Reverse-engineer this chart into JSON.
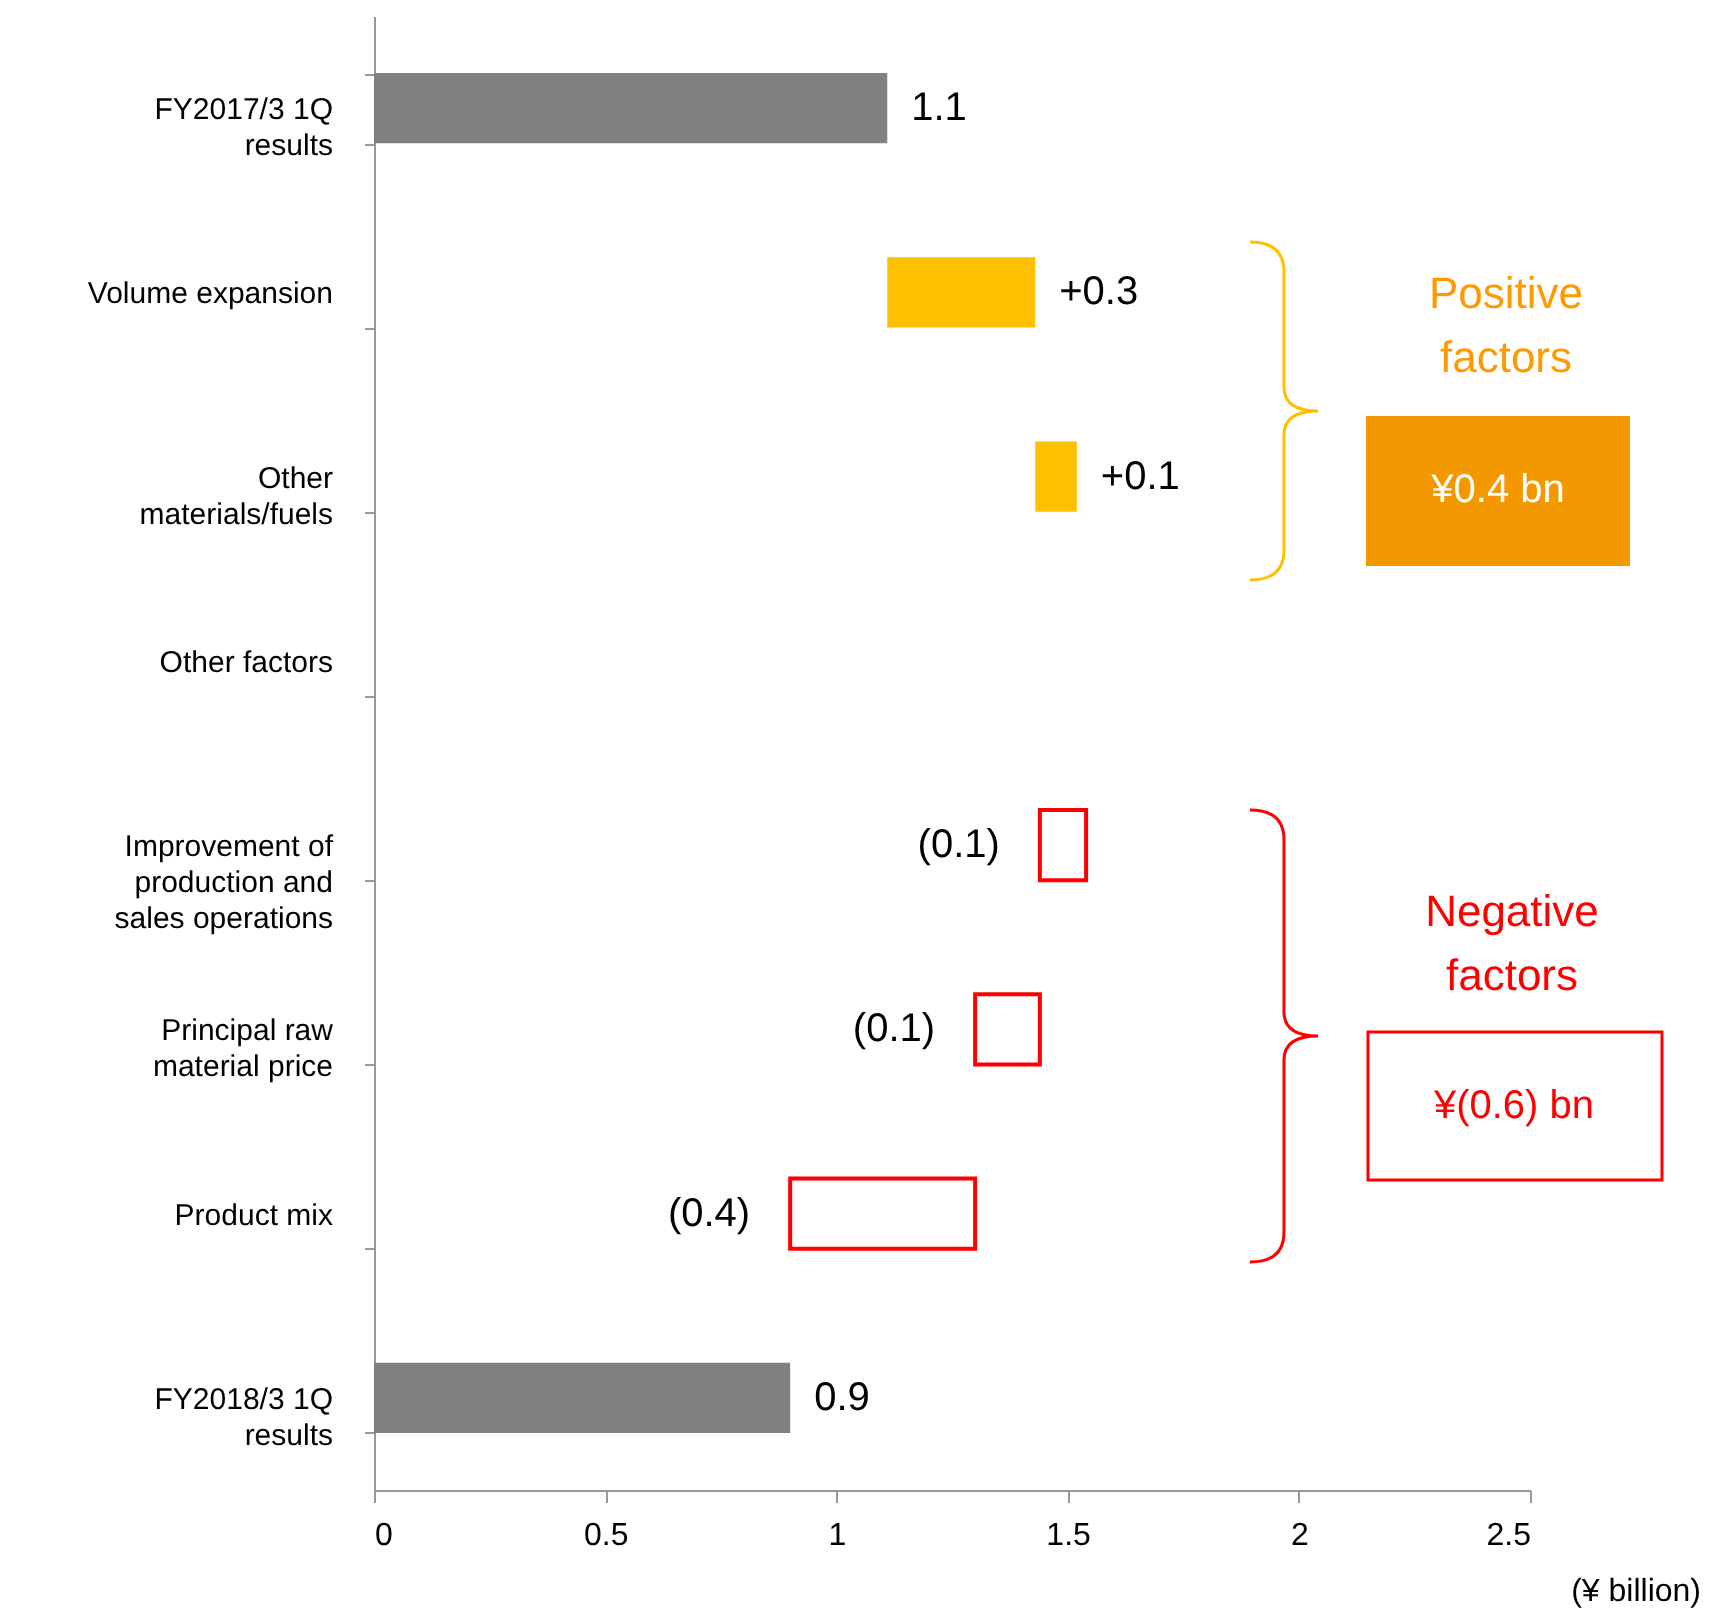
{
  "chart_data": {
    "type": "bar",
    "orientation": "horizontal",
    "xlabel": "(¥ billion)",
    "categories": [
      "FY2017/3 1Q results",
      "Volume expansion",
      "Other materials/fuels",
      "Other factors",
      "Improvement of production and sales operations",
      "Principal raw material price",
      "Product mix",
      "FY2018/3 1Q results"
    ],
    "values": [
      1.11,
      0.32,
      0.09,
      null,
      -0.1,
      -0.14,
      -0.4,
      0.9
    ],
    "base": [
      0,
      1.11,
      1.43,
      null,
      1.54,
      1.44,
      1.3,
      0
    ],
    "colors": [
      "#808080",
      "#ffc000",
      "#ffc000",
      null,
      "#ff0000",
      "#ff0000",
      "#ff0000",
      "#808080"
    ],
    "value_labels": [
      "1.1",
      "+0.3",
      "+0.1",
      null,
      "(0.1)",
      "(0.1)",
      "(0.4)",
      "0.9"
    ],
    "xlim": [
      0,
      2.5
    ],
    "xticks": [
      0,
      0.5,
      1,
      1.5,
      2,
      2.5
    ],
    "annotations": [
      "Positive factors",
      "¥0.4 bn",
      "Negative factors",
      "¥(0.6) bn"
    ]
  }
}
